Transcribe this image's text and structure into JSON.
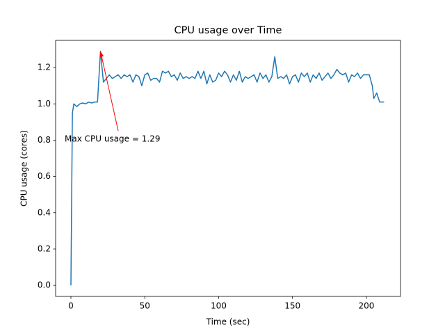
{
  "chart_data": {
    "type": "line",
    "title": "CPU usage over Time",
    "x_label": "Time (sec)",
    "y_label": "CPU usage (cores)",
    "x": [
      0,
      1,
      2,
      4,
      6,
      8,
      10,
      12,
      14,
      16,
      18,
      20,
      22,
      24,
      26,
      28,
      30,
      32,
      34,
      36,
      38,
      40,
      42,
      44,
      46,
      48,
      50,
      52,
      54,
      56,
      58,
      60,
      62,
      64,
      66,
      68,
      70,
      72,
      74,
      76,
      78,
      80,
      82,
      84,
      86,
      88,
      90,
      92,
      94,
      96,
      98,
      100,
      102,
      104,
      106,
      108,
      110,
      112,
      114,
      116,
      118,
      120,
      122,
      124,
      126,
      128,
      130,
      132,
      134,
      136,
      138,
      140,
      142,
      144,
      146,
      148,
      150,
      152,
      154,
      156,
      158,
      160,
      162,
      164,
      166,
      168,
      170,
      172,
      174,
      176,
      178,
      180,
      182,
      184,
      186,
      188,
      190,
      192,
      194,
      196,
      198,
      200,
      202,
      204,
      205,
      207,
      209,
      212
    ],
    "series": [
      {
        "name": "CPU usage",
        "color": "#1f77b4",
        "values": [
          0,
          0.95,
          1.0,
          0.985,
          1.0,
          1.005,
          1.0,
          1.01,
          1.005,
          1.01,
          1.01,
          1.29,
          1.12,
          1.14,
          1.16,
          1.14,
          1.15,
          1.16,
          1.14,
          1.16,
          1.15,
          1.16,
          1.12,
          1.16,
          1.15,
          1.1,
          1.16,
          1.17,
          1.13,
          1.14,
          1.14,
          1.12,
          1.18,
          1.17,
          1.18,
          1.15,
          1.16,
          1.13,
          1.17,
          1.14,
          1.15,
          1.14,
          1.15,
          1.14,
          1.18,
          1.14,
          1.18,
          1.11,
          1.16,
          1.12,
          1.13,
          1.17,
          1.15,
          1.18,
          1.16,
          1.12,
          1.16,
          1.13,
          1.18,
          1.12,
          1.15,
          1.14,
          1.15,
          1.16,
          1.12,
          1.17,
          1.14,
          1.16,
          1.12,
          1.15,
          1.26,
          1.14,
          1.15,
          1.14,
          1.16,
          1.11,
          1.15,
          1.16,
          1.12,
          1.17,
          1.15,
          1.17,
          1.12,
          1.16,
          1.14,
          1.17,
          1.13,
          1.15,
          1.17,
          1.14,
          1.16,
          1.19,
          1.17,
          1.16,
          1.17,
          1.12,
          1.16,
          1.15,
          1.17,
          1.14,
          1.16,
          1.16,
          1.16,
          1.1,
          1.03,
          1.06,
          1.01,
          1.01
        ]
      }
    ],
    "xlim": [
      -10.35,
      223.1
    ],
    "ylim": [
      -0.061,
      1.35
    ],
    "xticks": [
      0,
      50,
      100,
      150,
      200
    ],
    "yticks": [
      {
        "value": 0,
        "label": "0.0"
      },
      0.2,
      0.4,
      0.6,
      0.8,
      {
        "value": 1,
        "label": "1.0"
      },
      1.2
    ],
    "annotation": {
      "text": "Max CPU usage = 1.29",
      "color": "red"
    }
  }
}
